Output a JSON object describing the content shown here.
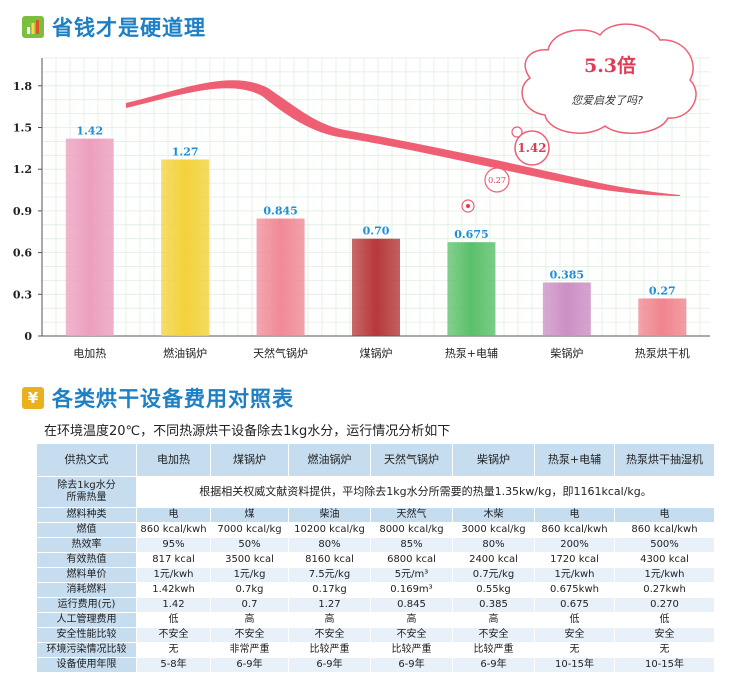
{
  "chart_title": "省钱才是硬道理",
  "chart_data": {
    "type": "bar",
    "categories": [
      "电加热",
      "燃油锅炉",
      "天然气锅炉",
      "煤锅炉",
      "热泵+电辅",
      "柴锅炉",
      "热泵烘干机"
    ],
    "values": [
      1.42,
      1.27,
      0.845,
      0.7,
      0.675,
      0.385,
      0.27
    ],
    "value_labels": [
      "1.42",
      "1.27",
      "0.845",
      "0.70",
      "0.675",
      "0.385",
      "0.27"
    ],
    "y_ticks": [
      "0",
      "0.3",
      "0.6",
      "0.9",
      "1.2",
      "1.5",
      "1.8"
    ],
    "ylim": [
      0,
      2.0
    ],
    "grid": true,
    "bar_colors": [
      "#ec9fbe",
      "#f3d23a",
      "#f08a97",
      "#b6383a",
      "#5bc06a",
      "#cc8fc4",
      "#f0858e"
    ]
  },
  "annotations": {
    "cloud_value": "5.3倍",
    "cloud_text": "您爱启发了吗?",
    "bubble_large": "1.42",
    "bubble_small": "0.27"
  },
  "table_title": "各类烘干设备费用对照表",
  "table_intro": "在环境温度20℃，不同热源烘干设备除去1kg水分，运行情况分析如下",
  "table": {
    "header_label": "供热文式",
    "columns": [
      "电加热",
      "煤锅炉",
      "燃油锅炉",
      "天然气锅炉",
      "柴锅炉",
      "热泵+电辅",
      "热泵烘干抽湿机"
    ],
    "demand_label_1": "除去1kg水分",
    "demand_label_2": "所需热量",
    "demand_note": "根据相关权威文献资料提供，平均除去1kg水分所需要的热量1.35kw/kg，即1161kcal/kg。",
    "fuel_type_label": "燃料种类",
    "fuel_types": [
      "电",
      "煤",
      "柴油",
      "天然气",
      "木柴",
      "电",
      "电"
    ],
    "rows": [
      {
        "label": "燃值",
        "values": [
          "860 kcal/kwh",
          "7000 kcal/kg",
          "10200 kcal/kg",
          "8000 kcal/kg",
          "3000 kcal/kg",
          "860 kcal/kwh",
          "860 kcal/kwh"
        ]
      },
      {
        "label": "热效率",
        "values": [
          "95%",
          "50%",
          "80%",
          "85%",
          "80%",
          "200%",
          "500%"
        ]
      },
      {
        "label": "有效热值",
        "values": [
          "817 kcal",
          "3500 kcal",
          "8160 kcal",
          "6800 kcal",
          "2400 kcal",
          "1720 kcal",
          "4300 kcal"
        ]
      },
      {
        "label": "燃料单价",
        "values": [
          "1元/kwh",
          "1元/kg",
          "7.5元/kg",
          "5元/m³",
          "0.7元/kg",
          "1元/kwh",
          "1元/kwh"
        ]
      },
      {
        "label": "消耗燃料",
        "values": [
          "1.42kwh",
          "0.7kg",
          "0.17kg",
          "0.169m³",
          "0.55kg",
          "0.675kwh",
          "0.27kwh"
        ]
      },
      {
        "label": "运行费用(元)",
        "values": [
          "1.42",
          "0.7",
          "1.27",
          "0.845",
          "0.385",
          "0.675",
          "0.270"
        ]
      },
      {
        "label": "人工管理费用",
        "values": [
          "低",
          "高",
          "高",
          "高",
          "高",
          "低",
          "低"
        ]
      },
      {
        "label": "安全性能比较",
        "values": [
          "不安全",
          "不安全",
          "不安全",
          "不安全",
          "不安全",
          "安全",
          "安全"
        ]
      },
      {
        "label": "环境污染情况比较",
        "values": [
          "无",
          "非常严重",
          "比较严重",
          "比较严重",
          "比较严重",
          "无",
          "无"
        ]
      },
      {
        "label": "设备使用年限",
        "values": [
          "5-8年",
          "6-9年",
          "6-9年",
          "6-9年",
          "6-9年",
          "10-15年",
          "10-15年"
        ]
      }
    ]
  }
}
